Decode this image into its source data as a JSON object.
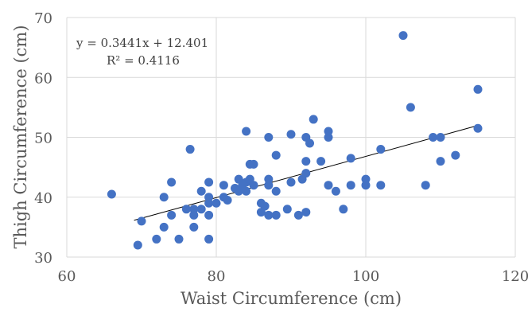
{
  "chart_data": {
    "type": "scatter",
    "title": "",
    "xlabel": "Waist Circumference (cm)",
    "ylabel": "Thigh Circumference (cm)",
    "xlim": [
      60,
      120
    ],
    "ylim": [
      30,
      70
    ],
    "xticks": [
      "60",
      "80",
      "100",
      "120"
    ],
    "yticks": [
      "30",
      "40",
      "50",
      "60",
      "70"
    ],
    "grid": true,
    "legend": "none",
    "marker_color": "#4472C4",
    "trendline_color": "#000000",
    "annotations": {
      "equation": "y = 0.3441x + 12.401",
      "r_squared": "R² = 0.4116"
    },
    "trendline": {
      "slope": 0.3441,
      "intercept": 12.401,
      "x_range": [
        69,
        115
      ]
    },
    "points": [
      [
        66,
        40.5
      ],
      [
        69.5,
        32
      ],
      [
        70,
        36
      ],
      [
        72,
        33
      ],
      [
        73,
        35
      ],
      [
        73,
        40
      ],
      [
        74,
        42.5
      ],
      [
        74,
        37
      ],
      [
        75,
        33
      ],
      [
        76,
        38
      ],
      [
        76.5,
        48
      ],
      [
        77,
        38
      ],
      [
        77,
        37
      ],
      [
        77,
        35
      ],
      [
        78,
        41
      ],
      [
        78,
        38
      ],
      [
        79,
        42.5
      ],
      [
        79,
        40
      ],
      [
        79,
        39
      ],
      [
        79,
        37
      ],
      [
        79,
        33
      ],
      [
        80,
        39
      ],
      [
        81,
        40
      ],
      [
        81,
        42
      ],
      [
        81.5,
        39.5
      ],
      [
        82.5,
        41.5
      ],
      [
        83,
        43
      ],
      [
        83,
        41
      ],
      [
        83.5,
        42
      ],
      [
        84,
        51
      ],
      [
        84,
        41
      ],
      [
        84,
        42.5
      ],
      [
        84.5,
        45.5
      ],
      [
        84.5,
        43
      ],
      [
        85,
        45.5
      ],
      [
        85,
        42
      ],
      [
        86,
        39
      ],
      [
        86,
        37.5
      ],
      [
        86.5,
        38.5
      ],
      [
        87,
        50
      ],
      [
        87,
        43
      ],
      [
        87,
        42
      ],
      [
        87,
        37
      ],
      [
        88,
        47
      ],
      [
        88,
        41
      ],
      [
        88,
        37
      ],
      [
        89.5,
        38
      ],
      [
        90,
        50.5
      ],
      [
        90,
        42.5
      ],
      [
        91,
        37
      ],
      [
        91.5,
        43
      ],
      [
        92,
        50
      ],
      [
        92,
        46
      ],
      [
        92,
        44
      ],
      [
        92,
        37.5
      ],
      [
        92.5,
        49
      ],
      [
        93,
        53
      ],
      [
        94,
        46
      ],
      [
        95,
        50
      ],
      [
        95,
        51
      ],
      [
        95,
        42
      ],
      [
        96,
        41
      ],
      [
        97,
        38
      ],
      [
        98,
        46.5
      ],
      [
        98,
        42
      ],
      [
        100,
        43
      ],
      [
        100,
        42
      ],
      [
        102,
        48
      ],
      [
        102,
        42
      ],
      [
        105,
        67
      ],
      [
        106,
        55
      ],
      [
        108,
        42
      ],
      [
        109,
        50
      ],
      [
        110,
        50
      ],
      [
        110,
        46
      ],
      [
        112,
        47
      ],
      [
        115,
        58
      ],
      [
        115,
        51.5
      ]
    ]
  }
}
